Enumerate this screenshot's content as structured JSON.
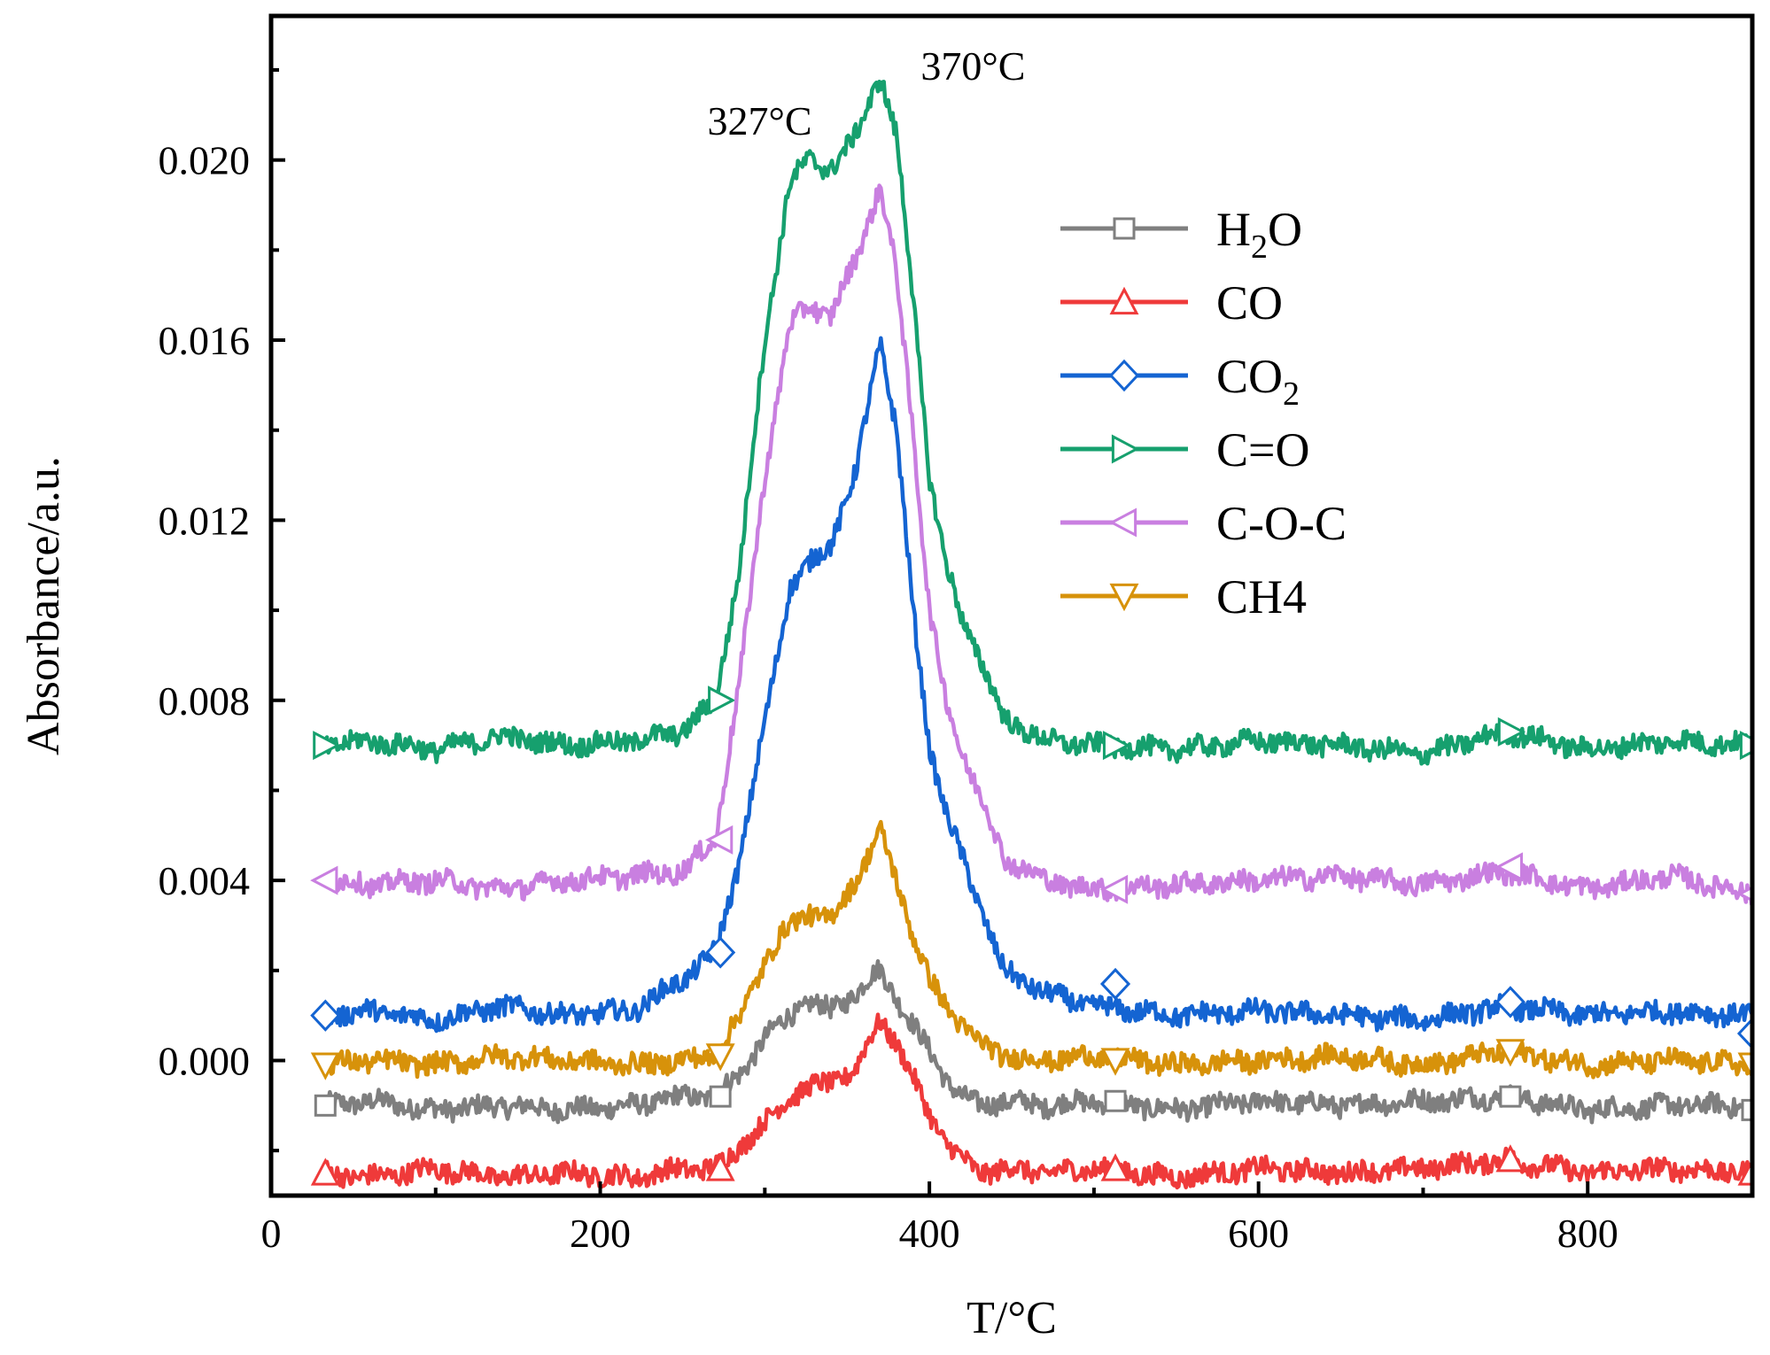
{
  "chart_data": {
    "type": "line",
    "title": "",
    "xlabel": "T/°C",
    "ylabel": "Absorbance/a.u.",
    "xlim": [
      0,
      900
    ],
    "ylim": [
      -0.003,
      0.0232
    ],
    "xticks": [
      0,
      200,
      400,
      600,
      800
    ],
    "x_tick_labels": [
      "0",
      "200",
      "400",
      "600",
      "800"
    ],
    "yticks": [
      0.0,
      0.004,
      0.008,
      0.012,
      0.016,
      0.02
    ],
    "y_tick_labels": [
      "0.000",
      "0.004",
      "0.008",
      "0.012",
      "0.016",
      "0.020"
    ],
    "grid": false,
    "legend_position": "top-right",
    "annotations": [
      {
        "text": "327°C",
        "x": 327,
        "y": 0.0203
      },
      {
        "text": "370°C",
        "x": 370,
        "y": 0.0222
      }
    ],
    "series": [
      {
        "name": "H2O",
        "label_main": "H",
        "label_sub": "2",
        "label_tail": "O",
        "color": "#7f7f7f",
        "marker": "square",
        "x": [
          33,
          60,
          100,
          140,
          180,
          220,
          250,
          270,
          285,
          300,
          315,
          327,
          340,
          355,
          370,
          380,
          390,
          400,
          410,
          420,
          430,
          445,
          470,
          500,
          550,
          600,
          650,
          700,
          750,
          800,
          850,
          900
        ],
        "values": [
          -0.001,
          -0.0009,
          -0.0011,
          -0.001,
          -0.0011,
          -0.001,
          -0.0008,
          -0.0008,
          -0.0003,
          0.0005,
          0.001,
          0.0013,
          0.0011,
          0.0015,
          0.002,
          0.0014,
          0.0008,
          0.0002,
          -0.0004,
          -0.0008,
          -0.001,
          -0.0009,
          -0.001,
          -0.0009,
          -0.0011,
          -0.0009,
          -0.001,
          -0.0009,
          -0.0008,
          -0.0011,
          -0.001,
          -0.001
        ],
        "marker_x": [
          33,
          273,
          513,
          753,
          900
        ],
        "marker_y": [
          -0.001,
          -0.0008,
          -0.0009,
          -0.0008,
          -0.0011
        ]
      },
      {
        "name": "CO",
        "label_main": "CO",
        "label_sub": "",
        "label_tail": "",
        "color": "#ef3a3a",
        "marker": "triangle-up",
        "x": [
          33,
          60,
          100,
          140,
          180,
          220,
          250,
          270,
          285,
          300,
          315,
          327,
          340,
          355,
          370,
          380,
          390,
          400,
          410,
          420,
          430,
          445,
          470,
          500,
          550,
          600,
          650,
          700,
          750,
          800,
          850,
          900
        ],
        "values": [
          -0.0025,
          -0.0026,
          -0.0024,
          -0.0026,
          -0.0025,
          -0.0026,
          -0.0024,
          -0.0024,
          -0.0019,
          -0.0014,
          -0.0008,
          -0.0006,
          -0.0005,
          -0.0002,
          0.0009,
          0.0004,
          -0.0004,
          -0.0012,
          -0.0018,
          -0.0022,
          -0.0025,
          -0.0024,
          -0.0025,
          -0.0024,
          -0.0026,
          -0.0024,
          -0.0025,
          -0.0024,
          -0.0022,
          -0.0025,
          -0.0024,
          -0.0025
        ],
        "marker_x": [
          33,
          273,
          513,
          753,
          900
        ],
        "marker_y": [
          -0.0025,
          -0.0024,
          -0.0024,
          -0.0022,
          -0.0025
        ]
      },
      {
        "name": "CO2",
        "label_main": "CO",
        "label_sub": "2",
        "label_tail": "",
        "color": "#1464d2",
        "marker": "diamond",
        "x": [
          33,
          60,
          100,
          140,
          180,
          220,
          250,
          270,
          285,
          300,
          315,
          327,
          340,
          355,
          370,
          380,
          390,
          400,
          410,
          420,
          430,
          445,
          470,
          500,
          550,
          600,
          650,
          700,
          750,
          800,
          850,
          900
        ],
        "values": [
          0.001,
          0.0011,
          0.0009,
          0.0012,
          0.001,
          0.0011,
          0.0018,
          0.0024,
          0.0045,
          0.0075,
          0.0105,
          0.011,
          0.0115,
          0.013,
          0.016,
          0.014,
          0.01,
          0.007,
          0.0055,
          0.0045,
          0.0035,
          0.002,
          0.0015,
          0.0012,
          0.001,
          0.0011,
          0.001,
          0.0009,
          0.0012,
          0.001,
          0.0011,
          0.001
        ],
        "marker_x": [
          33,
          273,
          513,
          753,
          900
        ],
        "marker_y": [
          0.001,
          0.0024,
          0.0017,
          0.0013,
          0.0006
        ]
      },
      {
        "name": "C=O",
        "label_main": "C=O",
        "label_sub": "",
        "label_tail": "",
        "color": "#16a06e",
        "marker": "triangle-right",
        "x": [
          33,
          60,
          100,
          140,
          180,
          220,
          250,
          270,
          285,
          300,
          315,
          327,
          340,
          355,
          370,
          380,
          390,
          400,
          410,
          420,
          430,
          445,
          470,
          500,
          550,
          600,
          650,
          700,
          750,
          800,
          850,
          900
        ],
        "values": [
          0.007,
          0.0071,
          0.0069,
          0.0072,
          0.007,
          0.0071,
          0.0073,
          0.008,
          0.011,
          0.016,
          0.0195,
          0.02,
          0.0198,
          0.0205,
          0.0219,
          0.0205,
          0.017,
          0.013,
          0.011,
          0.0098,
          0.009,
          0.0076,
          0.0071,
          0.007,
          0.0069,
          0.0071,
          0.007,
          0.0068,
          0.0073,
          0.0069,
          0.0071,
          0.007
        ],
        "marker_x": [
          33,
          273,
          513,
          753,
          900
        ],
        "marker_y": [
          0.007,
          0.008,
          0.007,
          0.0073,
          0.007
        ]
      },
      {
        "name": "C-O-C",
        "label_main": "C-O-C",
        "label_sub": "",
        "label_tail": "",
        "color": "#c97fe0",
        "marker": "triangle-left",
        "x": [
          33,
          60,
          100,
          140,
          180,
          220,
          250,
          270,
          285,
          300,
          315,
          327,
          340,
          355,
          370,
          380,
          390,
          400,
          410,
          420,
          430,
          445,
          470,
          500,
          550,
          600,
          650,
          700,
          750,
          800,
          850,
          900
        ],
        "values": [
          0.004,
          0.0039,
          0.004,
          0.0038,
          0.004,
          0.0041,
          0.0042,
          0.0049,
          0.0085,
          0.013,
          0.0163,
          0.0168,
          0.0165,
          0.0178,
          0.0194,
          0.0175,
          0.014,
          0.01,
          0.008,
          0.0068,
          0.006,
          0.0045,
          0.004,
          0.0038,
          0.0039,
          0.004,
          0.0041,
          0.0039,
          0.0042,
          0.0038,
          0.0041,
          0.0037
        ],
        "marker_x": [
          33,
          273,
          513,
          753,
          900
        ],
        "marker_y": [
          0.004,
          0.0049,
          0.0038,
          0.0043,
          0.0037
        ]
      },
      {
        "name": "CH4",
        "label_main": "CH4",
        "label_sub": "",
        "label_tail": "",
        "color": "#d7920a",
        "marker": "triangle-down",
        "x": [
          33,
          60,
          100,
          140,
          180,
          220,
          250,
          270,
          285,
          300,
          315,
          327,
          340,
          355,
          370,
          380,
          390,
          400,
          410,
          420,
          430,
          445,
          470,
          500,
          550,
          600,
          650,
          700,
          750,
          800,
          850,
          900
        ],
        "values": [
          -0.0001,
          0.0,
          -0.0001,
          0.0001,
          0.0,
          -0.0001,
          0.0,
          0.0001,
          0.001,
          0.0022,
          0.003,
          0.0033,
          0.0031,
          0.004,
          0.0051,
          0.004,
          0.0028,
          0.0018,
          0.0012,
          0.0008,
          0.0004,
          0.0001,
          0.0,
          0.0001,
          -0.0001,
          0.0,
          0.0001,
          -0.0001,
          0.0002,
          -0.0001,
          0.0,
          -0.0001
        ],
        "marker_x": [
          33,
          273,
          513,
          753,
          900
        ],
        "marker_y": [
          -0.0001,
          0.0001,
          0.0,
          0.0002,
          -0.0001
        ]
      }
    ]
  }
}
